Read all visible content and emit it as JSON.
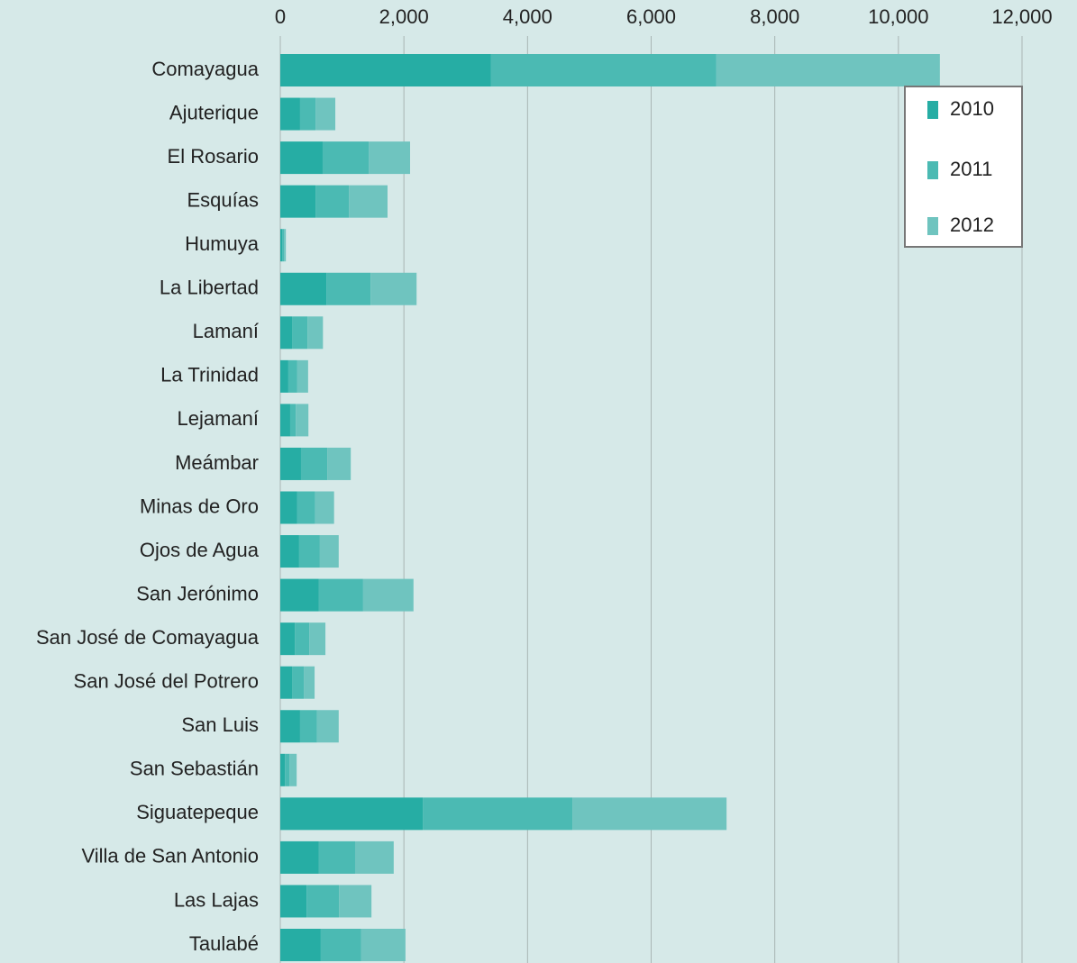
{
  "chart_data": {
    "type": "stacked-bar-horizontal",
    "categories": [
      "Comayagua",
      "Ajuterique",
      "El Rosario",
      "Esquías",
      "Humuya",
      "La Libertad",
      "Lamaní",
      "La Trinidad",
      "Lejamaní",
      "Meámbar",
      "Minas de Oro",
      "Ojos de Agua",
      "San Jerónimo",
      "San José de Comayagua",
      "San José del Potrero",
      "San Luis",
      "San Sebastián",
      "Siguatepeque",
      "Villa de San Antonio",
      "Las Lajas",
      "Taulabé"
    ],
    "series": [
      {
        "name": "2010",
        "color": "#26ada4",
        "values": [
          3410,
          320,
          685,
          570,
          30,
          745,
          190,
          130,
          160,
          335,
          275,
          305,
          625,
          235,
          190,
          320,
          75,
          2305,
          625,
          425,
          655
        ]
      },
      {
        "name": "2011",
        "color": "#4bbab3",
        "values": [
          3645,
          250,
          745,
          540,
          30,
          715,
          250,
          145,
          90,
          425,
          290,
          335,
          715,
          235,
          190,
          275,
          75,
          2420,
          585,
          525,
          655
        ]
      },
      {
        "name": "2012",
        "color": "#6fc4bf",
        "values": [
          3616,
          320,
          670,
          625,
          30,
          745,
          250,
          175,
          205,
          380,
          305,
          305,
          815,
          260,
          175,
          350,
          115,
          2495,
          625,
          525,
          715
        ]
      }
    ],
    "xlim": [
      0,
      12000
    ],
    "xticks": [
      0,
      {
        "value": 2000,
        "label": "2,000"
      },
      {
        "value": 4000,
        "label": "4,000"
      },
      {
        "value": 6000,
        "label": "6,000"
      },
      {
        "value": 8000,
        "label": "8,000"
      },
      {
        "value": 10000,
        "label": "10,000"
      },
      {
        "value": 12000,
        "label": "12,000"
      }
    ],
    "grid": true,
    "legend": "top-right"
  }
}
